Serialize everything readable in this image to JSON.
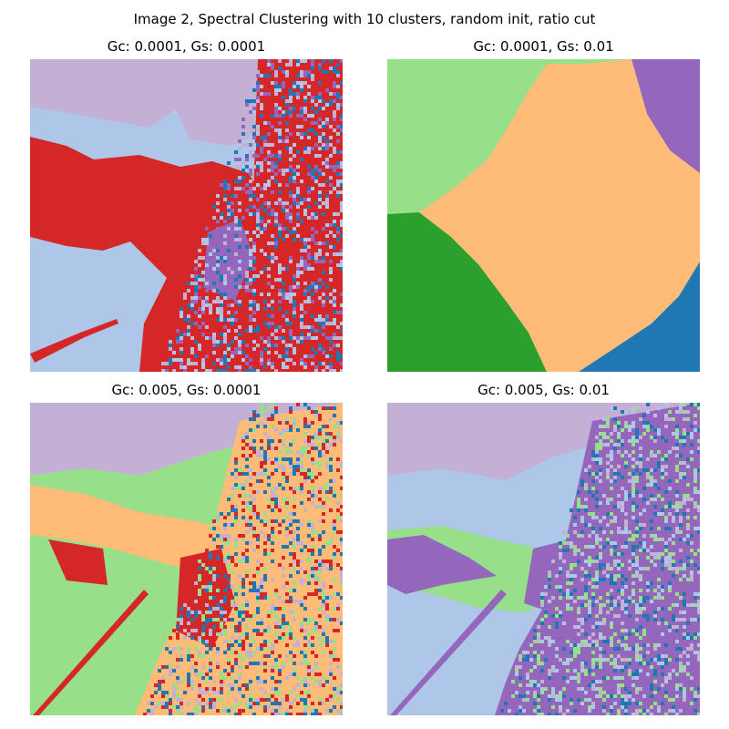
{
  "figure": {
    "suptitle": "Image 2, Spectral Clustering with 10 clusters, random init, ratio cut"
  },
  "chart_data": [
    {
      "type": "heatmap",
      "title": "Gc: 0.0001, Gs: 0.0001",
      "grid": false,
      "axes": "off",
      "palette": [
        "#c5b0d5",
        "#aec7e8",
        "#d62728",
        "#9467bd",
        "#1f77b4",
        "#2ca02c"
      ],
      "description_colors": {
        "background": "#c5b0d5",
        "regions": [
          "#aec7e8",
          "#d62728"
        ],
        "texture": [
          "#9467bd",
          "#1f77b4",
          "#2ca02c"
        ]
      }
    },
    {
      "type": "heatmap",
      "title": "Gc: 0.0001, Gs: 0.01",
      "grid": false,
      "axes": "off",
      "palette": [
        "#98df8a",
        "#ffbb78",
        "#2ca02c",
        "#9467bd",
        "#1f77b4",
        "#d62728"
      ]
    },
    {
      "type": "heatmap",
      "title": "Gc: 0.005, Gs: 0.0001",
      "grid": false,
      "axes": "off",
      "palette": [
        "#c5b0d5",
        "#98df8a",
        "#ffbb78",
        "#d62728",
        "#1f77b4"
      ]
    },
    {
      "type": "heatmap",
      "title": "Gc: 0.005, Gs: 0.01",
      "grid": false,
      "axes": "off",
      "palette": [
        "#c5b0d5",
        "#aec7e8",
        "#98df8a",
        "#9467bd",
        "#1f77b4"
      ]
    }
  ]
}
